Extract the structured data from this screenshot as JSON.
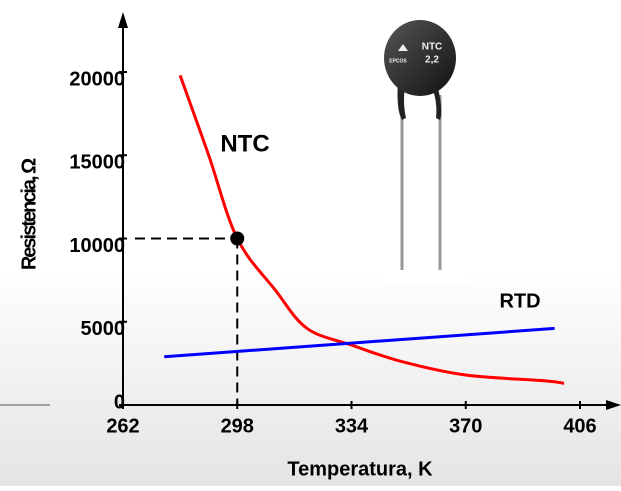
{
  "chart_data": {
    "type": "line",
    "xlabel": "Temperatura, K",
    "ylabel": "Resistencia, Ω",
    "xlim": [
      262,
      406
    ],
    "xticks": [
      262,
      298,
      334,
      370,
      406
    ],
    "ylim": [
      0,
      20000
    ],
    "yticks": [
      0,
      5000,
      10000,
      15000,
      20000
    ],
    "series": [
      {
        "name": "NTC",
        "color": "#ff0000",
        "x": [
          280,
          289,
          298,
          310,
          320,
          334,
          350,
          370,
          395,
          401
        ],
        "values": [
          19800,
          15000,
          10000,
          6900,
          4600,
          3600,
          2600,
          1800,
          1450,
          1300
        ]
      },
      {
        "name": "RTD",
        "color": "#0000ff",
        "x": [
          275,
          398
        ],
        "values": [
          2900,
          4600
        ]
      }
    ],
    "highlight": {
      "x": 298,
      "y": 10000
    },
    "image_text": [
      "NTC",
      "2,2",
      "EPCOS"
    ]
  }
}
